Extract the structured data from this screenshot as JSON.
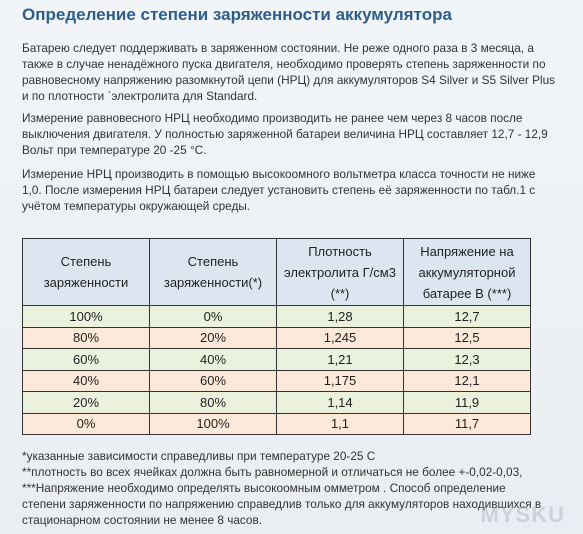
{
  "header": {
    "title": "Определение степени заряженности аккумулятора"
  },
  "paragraphs": [
    [
      "Батарею следует поддерживать в заряженном состоянии. Не реже одного раза в 3 месяца, а",
      "также в случае ненадёжного пуска двигателя, необходимо проверять степень заряженности по",
      "равновесному напряжению разомкнутой цепи (НРЦ) для аккумуляторов S4 Silver и S5 Silver Plus",
      "и по плотности `электролита для Standard."
    ],
    [
      "Измерение равновесного НРЦ необходимо производить не ранее чем через 8 часов после",
      "выключения двигателя. У полностью заряженной батареи величина НРЦ составляет 12,7 - 12,9",
      "Вольт при температуре 20 -25 °С."
    ],
    [
      "Измерение НРЦ производить в помощью высокоомного вольтметра класса точности не ниже",
      "1,0. После измерения НРЦ батареи следует установить степень её заряженности по табл.1 с",
      "учётом температуры окружающей среды."
    ]
  ],
  "table": {
    "header": [
      [
        "Степень",
        "заряженности"
      ],
      [
        "Степень",
        "заряженности(*)"
      ],
      [
        "Плотность",
        "электролита Г/см3",
        "(**)"
      ],
      [
        "Напряжение на",
        "аккумуляторной",
        "батарее В (***)"
      ]
    ],
    "rows": [
      [
        "100%",
        "0%",
        "1,28",
        "12,7"
      ],
      [
        "80%",
        "20%",
        "1,245",
        "12,5"
      ],
      [
        "60%",
        "40%",
        "1,21",
        "12,3"
      ],
      [
        "40%",
        "60%",
        "1,175",
        "12,1"
      ],
      [
        "20%",
        "80%",
        "1,14",
        "11,9"
      ],
      [
        "0%",
        "100%",
        "1,1",
        "11,7"
      ]
    ]
  },
  "footnotes": [
    " *указанные зависимости справедливы при температуре 20-25 С",
    "**плотность во всех ячейках должна быть равномерной и отличаться не более +-0,02-0,03,",
    "***Напряжение необходимо определять высокоомным омметром . Способ определение",
    "степени заряженности по напряжению справедлив только для аккумуляторов находившихся в",
    "стационарном состоянии не менее 8 часов."
  ],
  "watermark": "MYSKU"
}
